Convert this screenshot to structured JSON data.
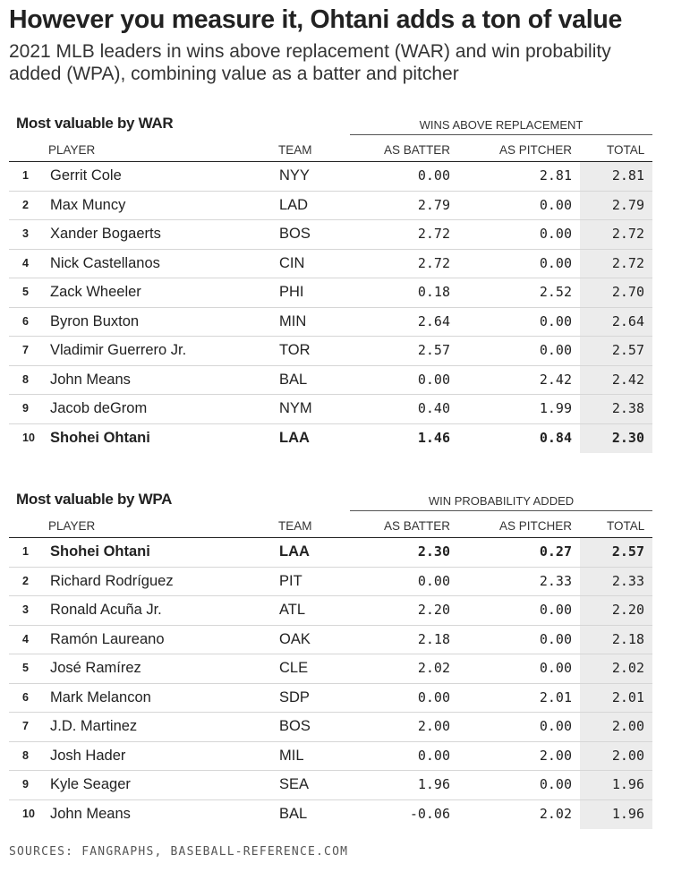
{
  "headline": "However you measure it, Ohtani adds a ton of value",
  "subhead": "2021 MLB leaders in wins above replacement (WAR) and win probability added (WPA), combining value as a batter and pitcher",
  "sources": "SOURCES: FANGRAPHS, BASEBALL-REFERENCE.COM",
  "columns": {
    "player": "PLAYER",
    "team": "TEAM",
    "as_batter": "AS BATTER",
    "as_pitcher": "AS PITCHER",
    "total": "TOTAL"
  },
  "war_table": {
    "title": "Most valuable by WAR",
    "group_label": "WINS ABOVE REPLACEMENT",
    "highlight_rank": "10",
    "rows": [
      {
        "rank": "1",
        "player": "Gerrit Cole",
        "team": "NYY",
        "batter": "0.00",
        "pitcher": "2.81",
        "total": "2.81"
      },
      {
        "rank": "2",
        "player": "Max Muncy",
        "team": "LAD",
        "batter": "2.79",
        "pitcher": "0.00",
        "total": "2.79"
      },
      {
        "rank": "3",
        "player": "Xander Bogaerts",
        "team": "BOS",
        "batter": "2.72",
        "pitcher": "0.00",
        "total": "2.72"
      },
      {
        "rank": "4",
        "player": "Nick Castellanos",
        "team": "CIN",
        "batter": "2.72",
        "pitcher": "0.00",
        "total": "2.72"
      },
      {
        "rank": "5",
        "player": "Zack Wheeler",
        "team": "PHI",
        "batter": "0.18",
        "pitcher": "2.52",
        "total": "2.70"
      },
      {
        "rank": "6",
        "player": "Byron Buxton",
        "team": "MIN",
        "batter": "2.64",
        "pitcher": "0.00",
        "total": "2.64"
      },
      {
        "rank": "7",
        "player": "Vladimir Guerrero Jr.",
        "team": "TOR",
        "batter": "2.57",
        "pitcher": "0.00",
        "total": "2.57"
      },
      {
        "rank": "8",
        "player": "John Means",
        "team": "BAL",
        "batter": "0.00",
        "pitcher": "2.42",
        "total": "2.42"
      },
      {
        "rank": "9",
        "player": "Jacob deGrom",
        "team": "NYM",
        "batter": "0.40",
        "pitcher": "1.99",
        "total": "2.38"
      },
      {
        "rank": "10",
        "player": "Shohei Ohtani",
        "team": "LAA",
        "batter": "1.46",
        "pitcher": "0.84",
        "total": "2.30"
      }
    ]
  },
  "wpa_table": {
    "title": "Most valuable by WPA",
    "group_label": "WIN PROBABILITY ADDED",
    "highlight_rank": "1",
    "rows": [
      {
        "rank": "1",
        "player": "Shohei Ohtani",
        "team": "LAA",
        "batter": "2.30",
        "pitcher": "0.27",
        "total": "2.57"
      },
      {
        "rank": "2",
        "player": "Richard Rodríguez",
        "team": "PIT",
        "batter": "0.00",
        "pitcher": "2.33",
        "total": "2.33"
      },
      {
        "rank": "3",
        "player": "Ronald Acuña Jr.",
        "team": "ATL",
        "batter": "2.20",
        "pitcher": "0.00",
        "total": "2.20"
      },
      {
        "rank": "4",
        "player": "Ramón Laureano",
        "team": "OAK",
        "batter": "2.18",
        "pitcher": "0.00",
        "total": "2.18"
      },
      {
        "rank": "5",
        "player": "José Ramírez",
        "team": "CLE",
        "batter": "2.02",
        "pitcher": "0.00",
        "total": "2.02"
      },
      {
        "rank": "6",
        "player": "Mark Melancon",
        "team": "SDP",
        "batter": "0.00",
        "pitcher": "2.01",
        "total": "2.01"
      },
      {
        "rank": "7",
        "player": "J.D. Martinez",
        "team": "BOS",
        "batter": "2.00",
        "pitcher": "0.00",
        "total": "2.00"
      },
      {
        "rank": "8",
        "player": "Josh Hader",
        "team": "MIL",
        "batter": "0.00",
        "pitcher": "2.00",
        "total": "2.00"
      },
      {
        "rank": "9",
        "player": "Kyle Seager",
        "team": "SEA",
        "batter": "1.96",
        "pitcher": "0.00",
        "total": "1.96"
      },
      {
        "rank": "10",
        "player": "John Means",
        "team": "BAL",
        "batter": "-0.06",
        "pitcher": "2.02",
        "total": "1.96"
      }
    ]
  },
  "chart_data": [
    {
      "type": "table",
      "title": "Most valuable by WAR",
      "group_label": "WINS ABOVE REPLACEMENT",
      "columns": [
        "PLAYER",
        "TEAM",
        "AS BATTER",
        "AS PITCHER",
        "TOTAL"
      ],
      "rows": [
        [
          "Gerrit Cole",
          "NYY",
          0.0,
          2.81,
          2.81
        ],
        [
          "Max Muncy",
          "LAD",
          2.79,
          0.0,
          2.79
        ],
        [
          "Xander Bogaerts",
          "BOS",
          2.72,
          0.0,
          2.72
        ],
        [
          "Nick Castellanos",
          "CIN",
          2.72,
          0.0,
          2.72
        ],
        [
          "Zack Wheeler",
          "PHI",
          0.18,
          2.52,
          2.7
        ],
        [
          "Byron Buxton",
          "MIN",
          2.64,
          0.0,
          2.64
        ],
        [
          "Vladimir Guerrero Jr.",
          "TOR",
          2.57,
          0.0,
          2.57
        ],
        [
          "John Means",
          "BAL",
          0.0,
          2.42,
          2.42
        ],
        [
          "Jacob deGrom",
          "NYM",
          0.4,
          1.99,
          2.38
        ],
        [
          "Shohei Ohtani",
          "LAA",
          1.46,
          0.84,
          2.3
        ]
      ]
    },
    {
      "type": "table",
      "title": "Most valuable by WPA",
      "group_label": "WIN PROBABILITY ADDED",
      "columns": [
        "PLAYER",
        "TEAM",
        "AS BATTER",
        "AS PITCHER",
        "TOTAL"
      ],
      "rows": [
        [
          "Shohei Ohtani",
          "LAA",
          2.3,
          0.27,
          2.57
        ],
        [
          "Richard Rodríguez",
          "PIT",
          0.0,
          2.33,
          2.33
        ],
        [
          "Ronald Acuña Jr.",
          "ATL",
          2.2,
          0.0,
          2.2
        ],
        [
          "Ramón Laureano",
          "OAK",
          2.18,
          0.0,
          2.18
        ],
        [
          "José Ramírez",
          "CLE",
          2.02,
          0.0,
          2.02
        ],
        [
          "Mark Melancon",
          "SDP",
          0.0,
          2.01,
          2.01
        ],
        [
          "J.D. Martinez",
          "BOS",
          2.0,
          0.0,
          2.0
        ],
        [
          "Josh Hader",
          "MIL",
          0.0,
          2.0,
          2.0
        ],
        [
          "Kyle Seager",
          "SEA",
          1.96,
          0.0,
          1.96
        ],
        [
          "John Means",
          "BAL",
          -0.06,
          2.02,
          1.96
        ]
      ]
    }
  ]
}
